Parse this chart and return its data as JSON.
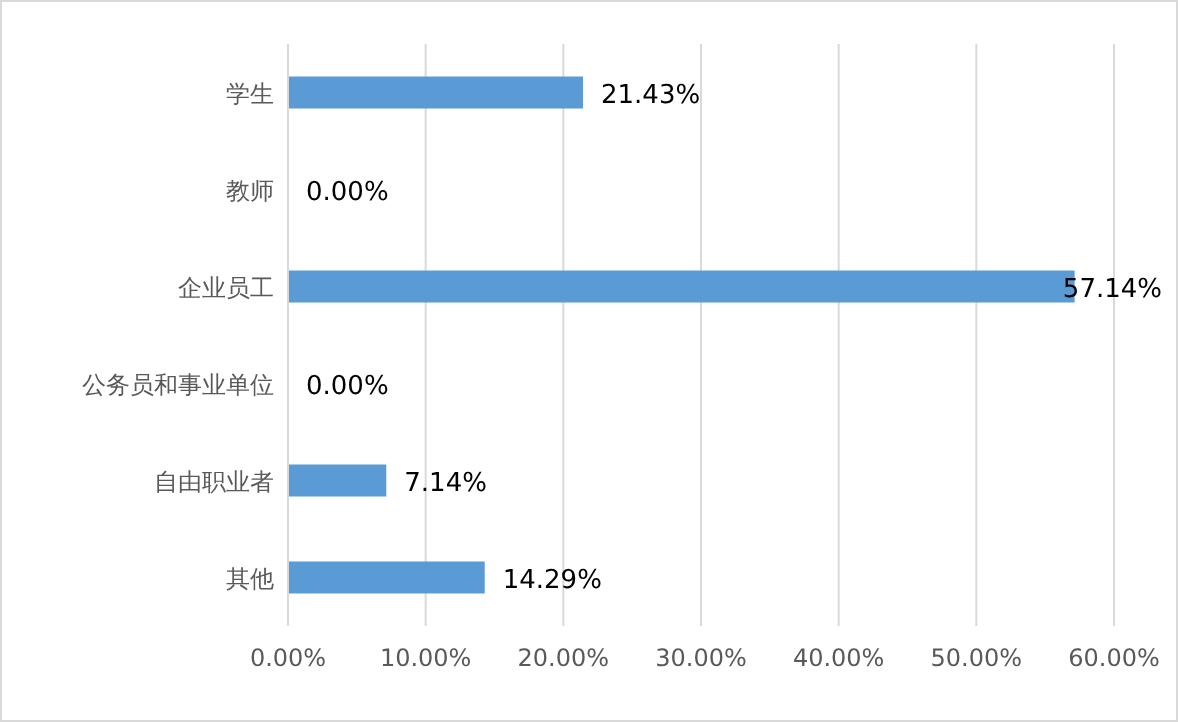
{
  "chart_data": {
    "type": "bar",
    "orientation": "horizontal",
    "categories": [
      "学生",
      "教师",
      "企业员工",
      "公务员和事业单位",
      "自由职业者",
      "其他"
    ],
    "values": [
      21.43,
      0,
      57.14,
      0,
      7.14,
      14.29
    ],
    "value_labels": [
      "21.43%",
      "0.00%",
      "57.14%",
      "0.00%",
      "7.14%",
      "14.29%"
    ],
    "color": "#5b9bd5",
    "xlim": [
      0,
      60
    ],
    "xticks": [
      {
        "value": 0,
        "label": "0.00%"
      },
      {
        "value": 10,
        "label": "10.00%"
      },
      {
        "value": 20,
        "label": "20.00%"
      },
      {
        "value": 30,
        "label": "30.00%"
      },
      {
        "value": 40,
        "label": "40.00%"
      },
      {
        "value": 50,
        "label": "50.00%"
      },
      {
        "value": 60,
        "label": "60.00%"
      }
    ],
    "grid": "x"
  }
}
